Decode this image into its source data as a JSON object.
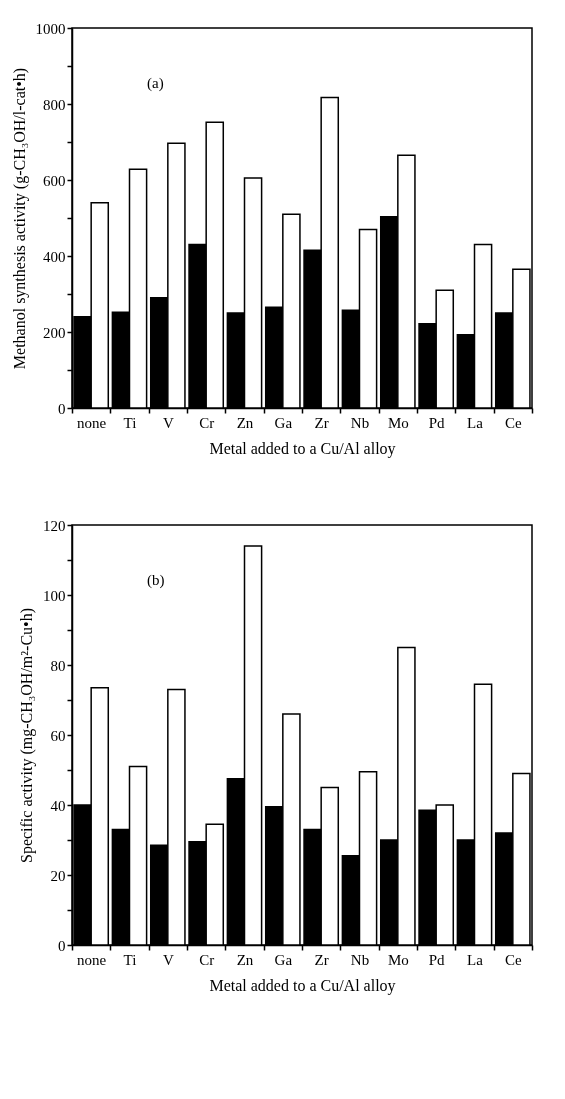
{
  "chart_data": [
    {
      "type": "bar",
      "xlabel": "Metal added to a Cu/Al alloy",
      "ylabel": "Methanol synthesis activity (g-CH₃OH/l-cat•h)",
      "annotations": [
        "(a)"
      ],
      "categories": [
        "none",
        "Ti",
        "V",
        "Cr",
        "Zn",
        "Ga",
        "Zr",
        "Nb",
        "Mo",
        "Pd",
        "La",
        "Ce"
      ],
      "series": [
        {
          "color": "#000000",
          "values": [
            240,
            252,
            290,
            430,
            250,
            265,
            415,
            257,
            503,
            222,
            193,
            250
          ]
        },
        {
          "color": "#ffffff",
          "values": [
            540,
            628,
            697,
            752,
            605,
            510,
            817,
            470,
            665,
            310,
            430,
            365
          ]
        }
      ],
      "ylim": [
        0,
        1000
      ],
      "yticks": [
        0,
        {
          "value": 100,
          "label": null
        },
        200,
        {
          "value": 300,
          "label": null
        },
        400,
        {
          "value": 500,
          "label": null
        },
        600,
        {
          "value": 700,
          "label": null
        },
        800,
        {
          "value": 900,
          "label": null
        },
        1000
      ],
      "grid": false,
      "legend": false
    },
    {
      "type": "bar",
      "xlabel": "Metal added to a Cu/Al alloy",
      "ylabel": "Specific activity (mg-CH₃OH/m²-Cu•h)",
      "annotations": [
        "(b)"
      ],
      "categories": [
        "none",
        "Ti",
        "V",
        "Cr",
        "Zn",
        "Ga",
        "Zr",
        "Nb",
        "Mo",
        "Pd",
        "La",
        "Ce"
      ],
      "series": [
        {
          "color": "#000000",
          "values": [
            40,
            33,
            28.5,
            29.5,
            47.5,
            39.5,
            33,
            25.5,
            30,
            38.5,
            30,
            32
          ]
        },
        {
          "color": "#ffffff",
          "values": [
            73.5,
            51,
            73,
            34.5,
            114,
            66,
            45,
            49.5,
            85,
            40,
            74.5,
            49
          ]
        }
      ],
      "ylim": [
        0,
        120
      ],
      "yticks": [
        0,
        {
          "value": 10,
          "label": null
        },
        20,
        {
          "value": 30,
          "label": null
        },
        40,
        {
          "value": 50,
          "label": null
        },
        60,
        {
          "value": 70,
          "label": null
        },
        80,
        {
          "value": 90,
          "label": null
        },
        100,
        {
          "value": 110,
          "label": null
        },
        120
      ],
      "grid": false,
      "legend": false
    }
  ]
}
